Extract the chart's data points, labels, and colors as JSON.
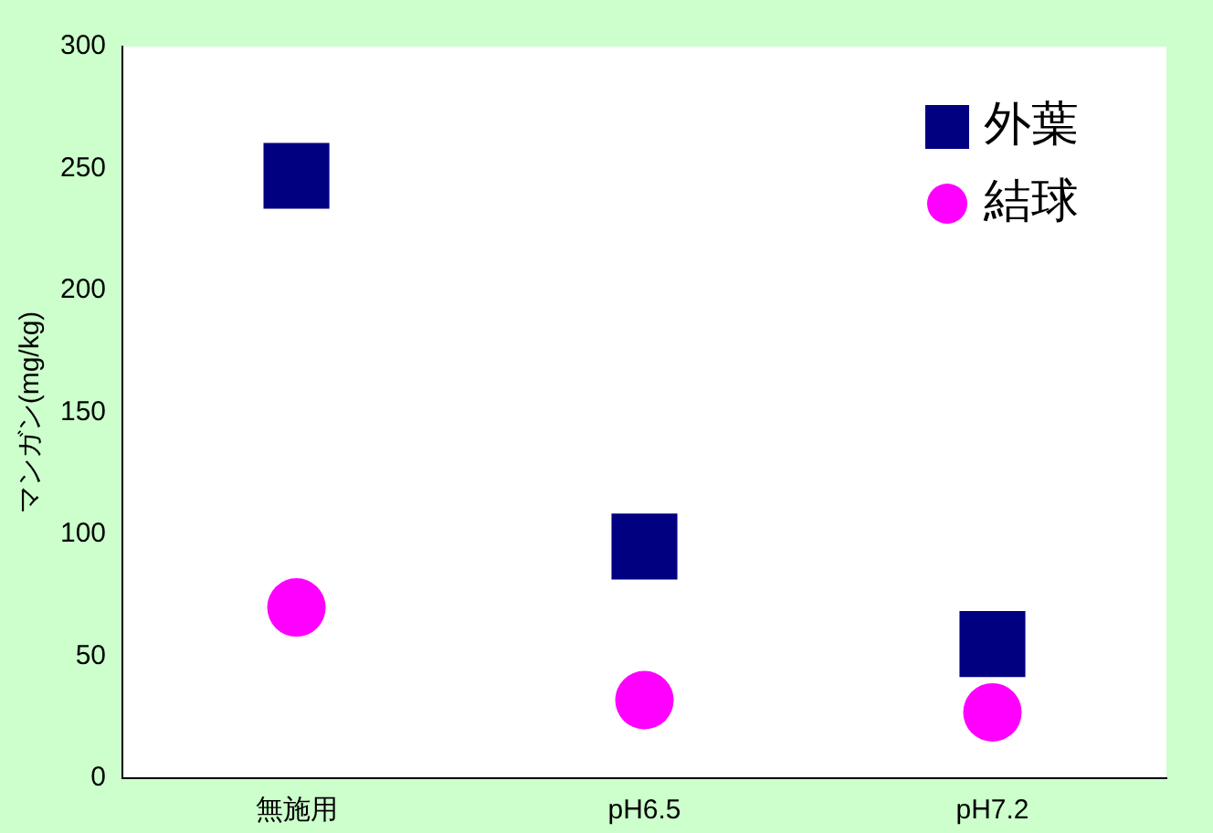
{
  "chart_data": {
    "type": "scatter",
    "ylabel": "マンガン(mg/kg)",
    "categories": [
      "無施用",
      "pH6.5",
      "pH7.2"
    ],
    "series": [
      {
        "name": "外葉",
        "color": "#000080",
        "marker": "square",
        "values": [
          247,
          95,
          55
        ]
      },
      {
        "name": "結球",
        "color": "#ff00ff",
        "marker": "circle",
        "values": [
          70,
          32,
          27
        ]
      }
    ],
    "ylim": [
      0,
      300
    ],
    "yticks": [
      0,
      50,
      100,
      150,
      200,
      250,
      300
    ],
    "grid": false,
    "legend": "top right"
  }
}
